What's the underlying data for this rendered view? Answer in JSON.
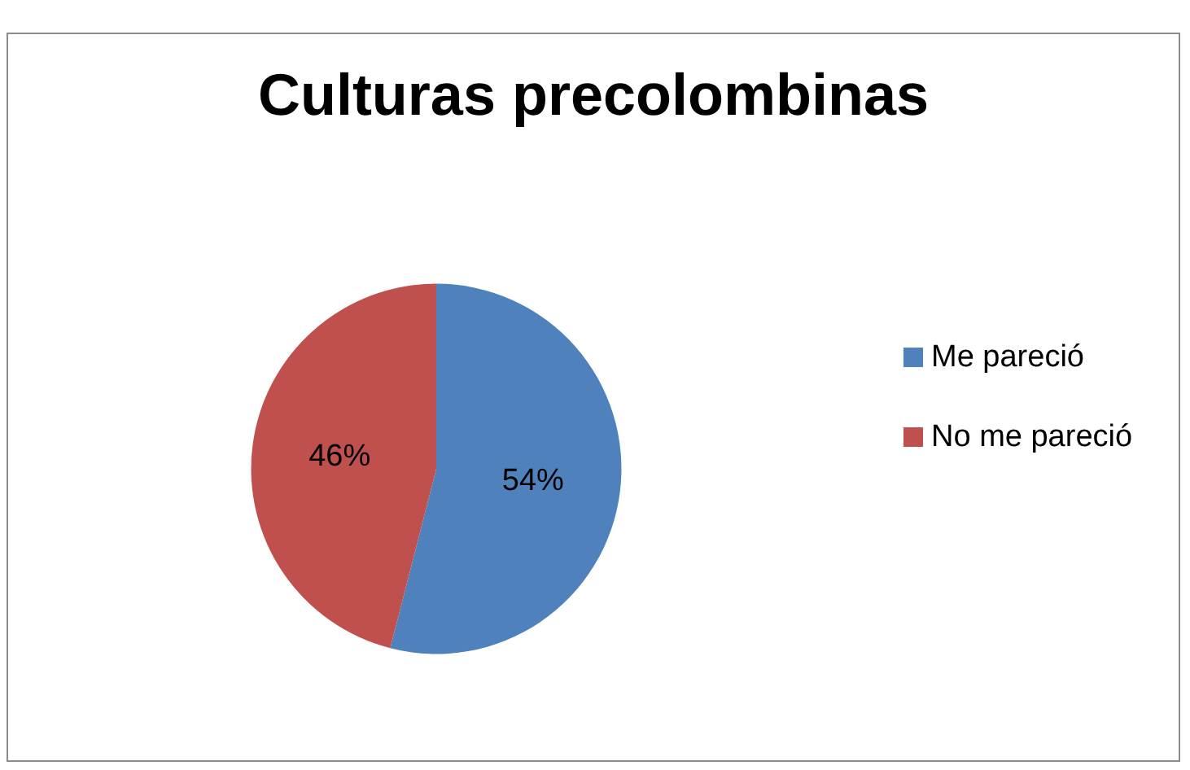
{
  "chart_data": {
    "type": "pie",
    "title": "Culturas precolombinas",
    "categories": [
      "Me pareció",
      "No me pareció"
    ],
    "values": [
      54,
      46
    ],
    "colors": [
      "#4f81bd",
      "#c0504d"
    ],
    "value_labels": [
      "54%",
      "46%"
    ],
    "legend": "right"
  }
}
